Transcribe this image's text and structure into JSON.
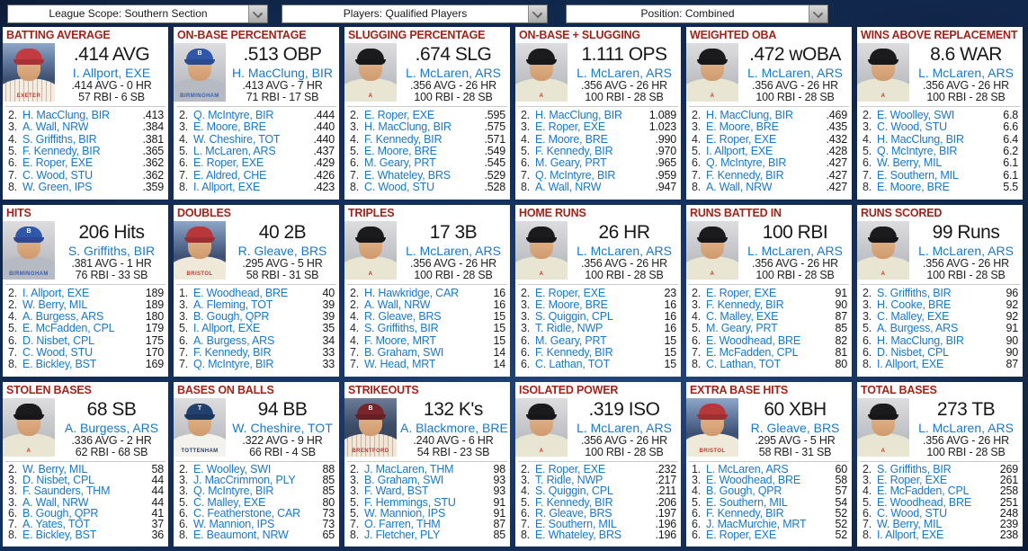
{
  "toolbar": {
    "dropdowns": [
      {
        "label": "League Scope: Southern Section"
      },
      {
        "label": "Players: Qualified Players"
      },
      {
        "label": "Position: Combined"
      }
    ]
  },
  "colors": {
    "panel_title_red": "#a3231a",
    "link_blue": "#1778cf",
    "value_text": "#181818",
    "separator_grey": "#c9c9c9",
    "page_background_navy": "#0e2145"
  },
  "avatars": {
    "EXE": {
      "background": "stadium",
      "cap": "#c23b40",
      "cap_letter": "",
      "jersey": "#f3eee2",
      "jersey_text": "EXETER",
      "jersey_text_color": "#c03a30",
      "pinstripes": true
    },
    "BIR": {
      "background": "studio",
      "cap": "#3158a8",
      "cap_letter": "B",
      "jersey": "#b6bac2",
      "jersey_text": "BIRMINGHAM",
      "jersey_text_color": "#3a5fae",
      "pinstripes": false
    },
    "ARS": {
      "background": "studio",
      "cap": "#1b1b1e",
      "cap_letter": "",
      "jersey": "#e9e5d3",
      "jersey_text": "A",
      "jersey_text_color": "#c0392b",
      "pinstripes": false
    },
    "BRS": {
      "background": "stadium",
      "cap": "#b8373a",
      "cap_letter": "",
      "jersey": "#efe9da",
      "jersey_text": "BRISTOL",
      "jersey_text_color": "#c03a30",
      "pinstripes": false
    },
    "TOT": {
      "background": "studio",
      "cap": "#23406e",
      "cap_letter": "T",
      "jersey": "#f4f2ec",
      "jersey_text": "TOTTENHAM",
      "jersey_text_color": "#27406b",
      "pinstripes": false
    },
    "BRE": {
      "background": "stadium-dark",
      "cap": "#77242b",
      "cap_letter": "B",
      "jersey": "#efe8d8",
      "jersey_text": "BRENTFORD",
      "jersey_text_color": "#b03a36",
      "pinstripes": true
    }
  },
  "panels": [
    {
      "title": "BATTING AVERAGE",
      "leader": {
        "value": ".414 AVG",
        "name": "I. Allport, EXE",
        "line1": ".414 AVG - 0 HR",
        "line2": "57 RBI - 6 SB",
        "avatar": "EXE"
      },
      "list": [
        {
          "rank": "2.",
          "name": "H. MacClung, BIR",
          "value": ".413"
        },
        {
          "rank": "3.",
          "name": "A. Wall, NRW",
          "value": ".384"
        },
        {
          "rank": "4.",
          "name": "S. Griffiths, BIR",
          "value": ".381"
        },
        {
          "rank": "5.",
          "name": "F. Kennedy, BIR",
          "value": ".365"
        },
        {
          "rank": "6.",
          "name": "E. Roper, EXE",
          "value": ".362"
        },
        {
          "rank": "7.",
          "name": "C. Wood, STU",
          "value": ".362"
        },
        {
          "rank": "8.",
          "name": "W. Green, IPS",
          "value": ".359"
        }
      ]
    },
    {
      "title": "ON-BASE PERCENTAGE",
      "leader": {
        "value": ".513 OBP",
        "name": "H. MacClung, BIR",
        "line1": ".413 AVG - 7 HR",
        "line2": "71 RBI - 17 SB",
        "avatar": "BIR"
      },
      "list": [
        {
          "rank": "2.",
          "name": "Q. McIntyre, BIR",
          "value": ".444"
        },
        {
          "rank": "3.",
          "name": "E. Moore, BRE",
          "value": ".440"
        },
        {
          "rank": "4.",
          "name": "W. Cheshire, TOT",
          "value": ".440"
        },
        {
          "rank": "5.",
          "name": "L. McLaren, ARS",
          "value": ".437"
        },
        {
          "rank": "6.",
          "name": "E. Roper, EXE",
          "value": ".429"
        },
        {
          "rank": "7.",
          "name": "E. Aldred, CHE",
          "value": ".426"
        },
        {
          "rank": "8.",
          "name": "I. Allport, EXE",
          "value": ".423"
        }
      ]
    },
    {
      "title": "SLUGGING PERCENTAGE",
      "leader": {
        "value": ".674 SLG",
        "name": "L. McLaren, ARS",
        "line1": ".356 AVG - 26 HR",
        "line2": "100 RBI - 28 SB",
        "avatar": "ARS"
      },
      "list": [
        {
          "rank": "2.",
          "name": "E. Roper, EXE",
          "value": ".595"
        },
        {
          "rank": "3.",
          "name": "H. MacClung, BIR",
          "value": ".575"
        },
        {
          "rank": "4.",
          "name": "F. Kennedy, BIR",
          "value": ".571"
        },
        {
          "rank": "5.",
          "name": "E. Moore, BRE",
          "value": ".549"
        },
        {
          "rank": "6.",
          "name": "M. Geary, PRT",
          "value": ".545"
        },
        {
          "rank": "7.",
          "name": "E. Whateley, BRS",
          "value": ".529"
        },
        {
          "rank": "8.",
          "name": "C. Wood, STU",
          "value": ".528"
        }
      ]
    },
    {
      "title": "ON-BASE + SLUGGING",
      "leader": {
        "value": "1.111 OPS",
        "name": "L. McLaren, ARS",
        "line1": ".356 AVG - 26 HR",
        "line2": "100 RBI - 28 SB",
        "avatar": "ARS"
      },
      "list": [
        {
          "rank": "2.",
          "name": "H. MacClung, BIR",
          "value": "1.089"
        },
        {
          "rank": "3.",
          "name": "E. Roper, EXE",
          "value": "1.023"
        },
        {
          "rank": "4.",
          "name": "E. Moore, BRE",
          "value": ".990"
        },
        {
          "rank": "5.",
          "name": "F. Kennedy, BIR",
          "value": ".970"
        },
        {
          "rank": "6.",
          "name": "M. Geary, PRT",
          "value": ".965"
        },
        {
          "rank": "7.",
          "name": "Q. McIntyre, BIR",
          "value": ".959"
        },
        {
          "rank": "8.",
          "name": "A. Wall, NRW",
          "value": ".947"
        }
      ]
    },
    {
      "title": "WEIGHTED OBA",
      "leader": {
        "value": ".472 wOBA",
        "name": "L. McLaren, ARS",
        "line1": ".356 AVG - 26 HR",
        "line2": "100 RBI - 28 SB",
        "avatar": "ARS"
      },
      "list": [
        {
          "rank": "2.",
          "name": "H. MacClung, BIR",
          "value": ".469"
        },
        {
          "rank": "3.",
          "name": "E. Moore, BRE",
          "value": ".435"
        },
        {
          "rank": "4.",
          "name": "E. Roper, EXE",
          "value": ".432"
        },
        {
          "rank": "5.",
          "name": "I. Allport, EXE",
          "value": ".428"
        },
        {
          "rank": "6.",
          "name": "Q. McIntyre, BIR",
          "value": ".427"
        },
        {
          "rank": "7.",
          "name": "F. Kennedy, BIR",
          "value": ".427"
        },
        {
          "rank": "8.",
          "name": "A. Wall, NRW",
          "value": ".427"
        }
      ]
    },
    {
      "title": "WINS ABOVE REPLACEMENT",
      "leader": {
        "value": "8.6 WAR",
        "name": "L. McLaren, ARS",
        "line1": ".356 AVG - 26 HR",
        "line2": "100 RBI - 28 SB",
        "avatar": "ARS"
      },
      "list": [
        {
          "rank": "2.",
          "name": "E. Woolley, SWI",
          "value": "6.8"
        },
        {
          "rank": "3.",
          "name": "C. Wood, STU",
          "value": "6.6"
        },
        {
          "rank": "4.",
          "name": "H. MacClung, BIR",
          "value": "6.4"
        },
        {
          "rank": "5.",
          "name": "Q. McIntyre, BIR",
          "value": "6.2"
        },
        {
          "rank": "6.",
          "name": "W. Berry, MIL",
          "value": "6.1"
        },
        {
          "rank": "7.",
          "name": "E. Southern, MIL",
          "value": "6.1"
        },
        {
          "rank": "8.",
          "name": "E. Moore, BRE",
          "value": "5.5"
        }
      ]
    },
    {
      "title": "HITS",
      "leader": {
        "value": "206 Hits",
        "name": "S. Griffiths, BIR",
        "line1": ".381 AVG - 1 HR",
        "line2": "76 RBI - 33 SB",
        "avatar": "BIR"
      },
      "list": [
        {
          "rank": "2.",
          "name": "I. Allport, EXE",
          "value": "189"
        },
        {
          "rank": "2.",
          "name": "W. Berry, MIL",
          "value": "189"
        },
        {
          "rank": "4.",
          "name": "A. Burgess, ARS",
          "value": "180"
        },
        {
          "rank": "5.",
          "name": "E. McFadden, CPL",
          "value": "179"
        },
        {
          "rank": "6.",
          "name": "D. Nisbet, CPL",
          "value": "175"
        },
        {
          "rank": "7.",
          "name": "C. Wood, STU",
          "value": "170"
        },
        {
          "rank": "8.",
          "name": "E. Bickley, BST",
          "value": "169"
        }
      ]
    },
    {
      "title": "DOUBLES",
      "leader": {
        "value": "40 2B",
        "name": "R. Gleave, BRS",
        "line1": ".295 AVG - 5 HR",
        "line2": "58 RBI - 31 SB",
        "avatar": "BRS"
      },
      "list": [
        {
          "rank": "1.",
          "name": "E. Woodhead, BRE",
          "value": "40"
        },
        {
          "rank": "3.",
          "name": "A. Fleming, TOT",
          "value": "39"
        },
        {
          "rank": "3.",
          "name": "B. Gough, QPR",
          "value": "39"
        },
        {
          "rank": "5.",
          "name": "I. Allport, EXE",
          "value": "35"
        },
        {
          "rank": "6.",
          "name": "A. Burgess, ARS",
          "value": "34"
        },
        {
          "rank": "7.",
          "name": "F. Kennedy, BIR",
          "value": "33"
        },
        {
          "rank": "7.",
          "name": "Q. McIntyre, BIR",
          "value": "33"
        }
      ]
    },
    {
      "title": "TRIPLES",
      "leader": {
        "value": "17 3B",
        "name": "L. McLaren, ARS",
        "line1": ".356 AVG - 26 HR",
        "line2": "100 RBI - 28 SB",
        "avatar": "ARS"
      },
      "list": [
        {
          "rank": "2.",
          "name": "H. Hawkridge, CAR",
          "value": "16"
        },
        {
          "rank": "2.",
          "name": "A. Wall, NRW",
          "value": "16"
        },
        {
          "rank": "4.",
          "name": "R. Gleave, BRS",
          "value": "15"
        },
        {
          "rank": "4.",
          "name": "S. Griffiths, BIR",
          "value": "15"
        },
        {
          "rank": "4.",
          "name": "F. Moore, MRT",
          "value": "15"
        },
        {
          "rank": "7.",
          "name": "B. Graham, SWI",
          "value": "14"
        },
        {
          "rank": "7.",
          "name": "W. Head, MRT",
          "value": "14"
        }
      ]
    },
    {
      "title": "HOME RUNS",
      "leader": {
        "value": "26 HR",
        "name": "L. McLaren, ARS",
        "line1": ".356 AVG - 26 HR",
        "line2": "100 RBI - 28 SB",
        "avatar": "ARS"
      },
      "list": [
        {
          "rank": "2.",
          "name": "E. Roper, EXE",
          "value": "23"
        },
        {
          "rank": "3.",
          "name": "E. Moore, BRE",
          "value": "16"
        },
        {
          "rank": "3.",
          "name": "S. Quiggin, CPL",
          "value": "16"
        },
        {
          "rank": "3.",
          "name": "T. Ridle, NWP",
          "value": "16"
        },
        {
          "rank": "6.",
          "name": "M. Geary, PRT",
          "value": "15"
        },
        {
          "rank": "6.",
          "name": "F. Kennedy, BIR",
          "value": "15"
        },
        {
          "rank": "6.",
          "name": "C. Lathan, TOT",
          "value": "15"
        }
      ]
    },
    {
      "title": "RUNS BATTED IN",
      "leader": {
        "value": "100 RBI",
        "name": "L. McLaren, ARS",
        "line1": ".356 AVG - 26 HR",
        "line2": "100 RBI - 28 SB",
        "avatar": "ARS"
      },
      "list": [
        {
          "rank": "2.",
          "name": "E. Roper, EXE",
          "value": "91"
        },
        {
          "rank": "3.",
          "name": "F. Kennedy, BIR",
          "value": "90"
        },
        {
          "rank": "4.",
          "name": "C. Malley, EXE",
          "value": "87"
        },
        {
          "rank": "5.",
          "name": "M. Geary, PRT",
          "value": "85"
        },
        {
          "rank": "6.",
          "name": "E. Woodhead, BRE",
          "value": "82"
        },
        {
          "rank": "7.",
          "name": "E. McFadden, CPL",
          "value": "81"
        },
        {
          "rank": "8.",
          "name": "C. Lathan, TOT",
          "value": "80"
        }
      ]
    },
    {
      "title": "RUNS SCORED",
      "leader": {
        "value": "99 Runs",
        "name": "L. McLaren, ARS",
        "line1": ".356 AVG - 26 HR",
        "line2": "100 RBI - 28 SB",
        "avatar": "ARS"
      },
      "list": [
        {
          "rank": "2.",
          "name": "S. Griffiths, BIR",
          "value": "96"
        },
        {
          "rank": "3.",
          "name": "H. Cooke, BRE",
          "value": "92"
        },
        {
          "rank": "3.",
          "name": "C. Malley, EXE",
          "value": "92"
        },
        {
          "rank": "5.",
          "name": "A. Burgess, ARS",
          "value": "91"
        },
        {
          "rank": "6.",
          "name": "H. MacClung, BIR",
          "value": "90"
        },
        {
          "rank": "6.",
          "name": "D. Nisbet, CPL",
          "value": "90"
        },
        {
          "rank": "8.",
          "name": "I. Allport, EXE",
          "value": "87"
        }
      ]
    },
    {
      "title": "STOLEN BASES",
      "leader": {
        "value": "68 SB",
        "name": "A. Burgess, ARS",
        "line1": ".336 AVG - 2 HR",
        "line2": "62 RBI - 68 SB",
        "avatar": "ARS"
      },
      "list": [
        {
          "rank": "2.",
          "name": "W. Berry, MIL",
          "value": "58"
        },
        {
          "rank": "3.",
          "name": "D. Nisbet, CPL",
          "value": "44"
        },
        {
          "rank": "3.",
          "name": "F. Saunders, THM",
          "value": "44"
        },
        {
          "rank": "3.",
          "name": "A. Wall, NRW",
          "value": "44"
        },
        {
          "rank": "6.",
          "name": "B. Gough, QPR",
          "value": "41"
        },
        {
          "rank": "7.",
          "name": "A. Yates, TOT",
          "value": "37"
        },
        {
          "rank": "8.",
          "name": "E. Bickley, BST",
          "value": "36"
        }
      ]
    },
    {
      "title": "BASES ON BALLS",
      "leader": {
        "value": "94 BB",
        "name": "W. Cheshire, TOT",
        "line1": ".322 AVG - 9 HR",
        "line2": "66 RBI - 4 SB",
        "avatar": "TOT"
      },
      "list": [
        {
          "rank": "2.",
          "name": "E. Woolley, SWI",
          "value": "88"
        },
        {
          "rank": "3.",
          "name": "J. MacCrimmon, PLY",
          "value": "85"
        },
        {
          "rank": "3.",
          "name": "Q. McIntyre, BIR",
          "value": "85"
        },
        {
          "rank": "5.",
          "name": "C. Malley, EXE",
          "value": "80"
        },
        {
          "rank": "6.",
          "name": "C. Featherstone, CAR",
          "value": "73"
        },
        {
          "rank": "6.",
          "name": "W. Mannion, IPS",
          "value": "73"
        },
        {
          "rank": "8.",
          "name": "E. Beaumont, NRW",
          "value": "65"
        }
      ]
    },
    {
      "title": "STRIKEOUTS",
      "leader": {
        "value": "132 K's",
        "name": "A. Blackmore, BRE",
        "line1": ".240 AVG - 6 HR",
        "line2": "54 RBI - 23 SB",
        "avatar": "BRE"
      },
      "list": [
        {
          "rank": "2.",
          "name": "J. MacLaren, THM",
          "value": "98"
        },
        {
          "rank": "3.",
          "name": "B. Graham, SWI",
          "value": "93"
        },
        {
          "rank": "3.",
          "name": "F. Ward, BST",
          "value": "93"
        },
        {
          "rank": "5.",
          "name": "F. Hemmings, STU",
          "value": "91"
        },
        {
          "rank": "5.",
          "name": "W. Mannion, IPS",
          "value": "91"
        },
        {
          "rank": "7.",
          "name": "O. Farren, THM",
          "value": "87"
        },
        {
          "rank": "8.",
          "name": "J. Fletcher, PLY",
          "value": "85"
        }
      ]
    },
    {
      "title": "ISOLATED POWER",
      "leader": {
        "value": ".319 ISO",
        "name": "L. McLaren, ARS",
        "line1": ".356 AVG - 26 HR",
        "line2": "100 RBI - 28 SB",
        "avatar": "ARS"
      },
      "list": [
        {
          "rank": "2.",
          "name": "E. Roper, EXE",
          "value": ".232"
        },
        {
          "rank": "3.",
          "name": "T. Ridle, NWP",
          "value": ".217"
        },
        {
          "rank": "4.",
          "name": "S. Quiggin, CPL",
          "value": ".211"
        },
        {
          "rank": "5.",
          "name": "F. Kennedy, BIR",
          "value": ".206"
        },
        {
          "rank": "6.",
          "name": "R. Gleave, BRS",
          "value": ".197"
        },
        {
          "rank": "7.",
          "name": "E. Southern, MIL",
          "value": ".196"
        },
        {
          "rank": "8.",
          "name": "E. Whateley, BRS",
          "value": ".196"
        }
      ]
    },
    {
      "title": "EXTRA BASE HITS",
      "leader": {
        "value": "60 XBH",
        "name": "R. Gleave, BRS",
        "line1": ".295 AVG - 5 HR",
        "line2": "58 RBI - 31 SB",
        "avatar": "BRS"
      },
      "list": [
        {
          "rank": "1.",
          "name": "L. McLaren, ARS",
          "value": "60"
        },
        {
          "rank": "3.",
          "name": "E. Woodhead, BRE",
          "value": "58"
        },
        {
          "rank": "4.",
          "name": "B. Gough, QPR",
          "value": "57"
        },
        {
          "rank": "5.",
          "name": "E. Southern, MIL",
          "value": "54"
        },
        {
          "rank": "6.",
          "name": "F. Kennedy, BIR",
          "value": "52"
        },
        {
          "rank": "6.",
          "name": "J. MacMurchie, MRT",
          "value": "52"
        },
        {
          "rank": "6.",
          "name": "E. Roper, EXE",
          "value": "52"
        }
      ]
    },
    {
      "title": "TOTAL BASES",
      "leader": {
        "value": "273 TB",
        "name": "L. McLaren, ARS",
        "line1": ".356 AVG - 26 HR",
        "line2": "100 RBI - 28 SB",
        "avatar": "ARS"
      },
      "list": [
        {
          "rank": "2.",
          "name": "S. Griffiths, BIR",
          "value": "269"
        },
        {
          "rank": "3.",
          "name": "E. Roper, EXE",
          "value": "261"
        },
        {
          "rank": "4.",
          "name": "E. McFadden, CPL",
          "value": "258"
        },
        {
          "rank": "5.",
          "name": "E. Woodhead, BRE",
          "value": "251"
        },
        {
          "rank": "6.",
          "name": "C. Wood, STU",
          "value": "248"
        },
        {
          "rank": "7.",
          "name": "W. Berry, MIL",
          "value": "239"
        },
        {
          "rank": "8.",
          "name": "I. Allport, EXE",
          "value": "238"
        }
      ]
    }
  ]
}
